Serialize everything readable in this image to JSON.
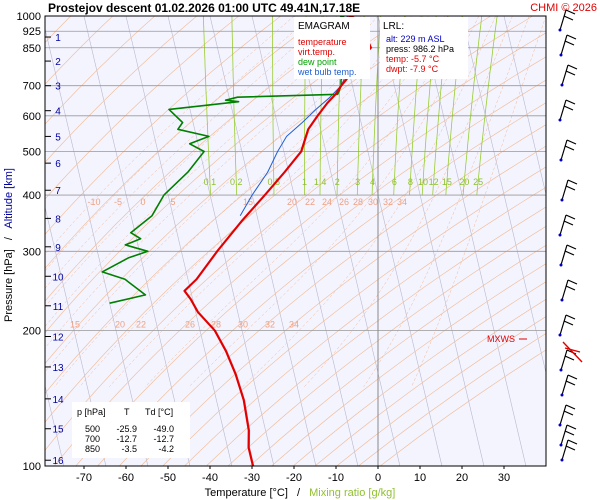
{
  "header": {
    "title": "Prostejov   descent   01.02.2026 01:00 UTC  49.41N,17.18E",
    "copyright": "CHMI © 2026"
  },
  "legend": {
    "heading": "EMAGRAM",
    "items": [
      {
        "label": "temperature",
        "color": "#e00000"
      },
      {
        "label": "virt.temp.",
        "color": "#e00000"
      },
      {
        "label": "dew point",
        "color": "#00a000"
      },
      {
        "label": "wet bulb temp.",
        "color": "#2060d0"
      }
    ]
  },
  "lrl": {
    "heading": "LRL:",
    "rows": [
      {
        "text": "alt: 229 m ASL",
        "color": "#0000c0"
      },
      {
        "text": "press: 986.2 hPa",
        "color": "#000000"
      },
      {
        "text": "temp: -5.7 °C",
        "color": "#e00000"
      },
      {
        "text": "dwpt: -7.9 °C",
        "color": "#e00000"
      }
    ]
  },
  "table": {
    "header": [
      "p [hPa]",
      "T",
      "Td [°C]"
    ],
    "rows": [
      [
        "500",
        "-25.9",
        "-49.0"
      ],
      [
        "700",
        "-12.7",
        "-12.7"
      ],
      [
        "850",
        "-3.5",
        "-4.2"
      ]
    ]
  },
  "axes": {
    "ylabel_pressure": "Pressure [hPa]",
    "ylabel_sep": "/",
    "ylabel_altitude": "Altitude [km]",
    "xlabel_temp": "Temperature [°C]",
    "xlabel_sep": "/",
    "xlabel_mix": "Mixing ratio [g/kg]"
  },
  "mxws_label": "MXWS",
  "colors": {
    "temperature": "#e00000",
    "dewpoint": "#008000",
    "wetbulb": "#2060d0",
    "isobar": "#999999",
    "dry_adiabat": "#f0c0a0",
    "moist_adiabat": "#f5d8c0",
    "mixing_ratio": "#9acd32",
    "isotherm": "#b8b8cc",
    "plot_bg": "#f4f4ff",
    "altitude_label": "#0000a0",
    "mixing_label": "#90c030",
    "adiabat_label": "#f0a080"
  },
  "chart_data": {
    "type": "line",
    "x_axis": {
      "label": "Temperature [°C]",
      "ticks": [
        -70,
        -60,
        -50,
        -40,
        -30,
        -20,
        -10,
        0,
        10,
        20,
        30
      ],
      "range": [
        -80,
        30
      ]
    },
    "y_axis": {
      "label": "Pressure [hPa]",
      "scale": "log",
      "range": [
        1000,
        100
      ],
      "ticks": [
        100,
        200,
        300,
        400,
        500,
        600,
        700,
        850,
        925,
        1000
      ]
    },
    "altitude_ticks_km": [
      "1",
      "2",
      "3",
      "4",
      "5",
      "6",
      "7",
      "8",
      "9",
      "10",
      "11",
      "12",
      "13",
      "14",
      "15",
      "16"
    ],
    "altitude_tick_pressures": [
      898,
      794,
      700,
      616,
      540,
      471,
      410,
      355,
      307,
      264,
      227,
      194,
      166,
      141,
      121,
      103
    ],
    "mixing_ratio_labels": [
      "0.1",
      "0.2",
      "0.5",
      "1",
      "1.4",
      "2",
      "3",
      "4",
      "6",
      "8",
      "10",
      "12",
      "15",
      "20",
      "25"
    ],
    "mixing_ratio_values": [
      0.1,
      0.2,
      0.5,
      1,
      1.4,
      2,
      3,
      4,
      6,
      8,
      10,
      12,
      15,
      20,
      25
    ],
    "dry_adiabat_labels_200": [
      "15",
      "20",
      "22",
      "26",
      "28",
      "30",
      "32",
      "34"
    ],
    "moist_adiabat_labels_400": [
      "-10",
      "-5",
      "0",
      "5",
      "15",
      "20",
      "22",
      "24",
      "26",
      "28",
      "30",
      "32",
      "34"
    ],
    "series": [
      {
        "name": "temperature",
        "points": [
          [
            1000,
            -7
          ],
          [
            990,
            -5.7
          ],
          [
            975,
            -6.2
          ],
          [
            950,
            -7.8
          ],
          [
            925,
            -7.6
          ],
          [
            900,
            -4.2
          ],
          [
            875,
            -3.8
          ],
          [
            850,
            -3.5
          ],
          [
            820,
            -5.5
          ],
          [
            800,
            -6.5
          ],
          [
            760,
            -9
          ],
          [
            720,
            -11.3
          ],
          [
            700,
            -12.7
          ],
          [
            670,
            -14.5
          ],
          [
            640,
            -17
          ],
          [
            600,
            -20
          ],
          [
            560,
            -23
          ],
          [
            500,
            -25.9
          ],
          [
            450,
            -31
          ],
          [
            400,
            -37
          ],
          [
            350,
            -44
          ],
          [
            300,
            -51.5
          ],
          [
            260,
            -58
          ],
          [
            245,
            -61.5
          ],
          [
            235,
            -60.5
          ],
          [
            220,
            -59.5
          ],
          [
            200,
            -56.5
          ],
          [
            180,
            -55
          ],
          [
            160,
            -54
          ],
          [
            140,
            -53.5
          ],
          [
            120,
            -54
          ],
          [
            110,
            -55
          ],
          [
            100,
            -55
          ]
        ]
      },
      {
        "name": "dew point",
        "points": [
          [
            1000,
            -9
          ],
          [
            990,
            -7.9
          ],
          [
            975,
            -9
          ],
          [
            950,
            -8.4
          ],
          [
            925,
            -10
          ],
          [
            900,
            -4.6
          ],
          [
            875,
            -4.4
          ],
          [
            850,
            -4.2
          ],
          [
            820,
            -8
          ],
          [
            800,
            -9.5
          ],
          [
            760,
            -10.7
          ],
          [
            720,
            -12.4
          ],
          [
            700,
            -12.7
          ],
          [
            680,
            -13.5
          ],
          [
            670,
            -14
          ],
          [
            660,
            -38
          ],
          [
            655,
            -39.5
          ],
          [
            650,
            -41
          ],
          [
            645,
            -38
          ],
          [
            620,
            -55
          ],
          [
            580,
            -52.5
          ],
          [
            560,
            -54
          ],
          [
            540,
            -47
          ],
          [
            520,
            -52
          ],
          [
            500,
            -49
          ],
          [
            450,
            -54
          ],
          [
            400,
            -61
          ],
          [
            360,
            -65
          ],
          [
            330,
            -71
          ],
          [
            320,
            -69
          ],
          [
            310,
            -73
          ],
          [
            300,
            -68
          ],
          [
            290,
            -73
          ],
          [
            270,
            -80
          ],
          [
            260,
            -75
          ],
          [
            240,
            -71
          ],
          [
            230,
            -80
          ]
        ]
      },
      {
        "name": "wet bulb temp.",
        "points": [
          [
            1000,
            -7.5
          ],
          [
            975,
            -6.5
          ],
          [
            950,
            -8
          ],
          [
            925,
            -8.5
          ],
          [
            900,
            -4.3
          ],
          [
            850,
            -3.8
          ],
          [
            800,
            -7.5
          ],
          [
            760,
            -10
          ],
          [
            700,
            -12.7
          ],
          [
            660,
            -16
          ],
          [
            620,
            -20
          ],
          [
            580,
            -24
          ],
          [
            540,
            -28.5
          ],
          [
            500,
            -31.5
          ],
          [
            450,
            -35
          ],
          [
            400,
            -40
          ],
          [
            360,
            -44
          ]
        ]
      }
    ]
  }
}
